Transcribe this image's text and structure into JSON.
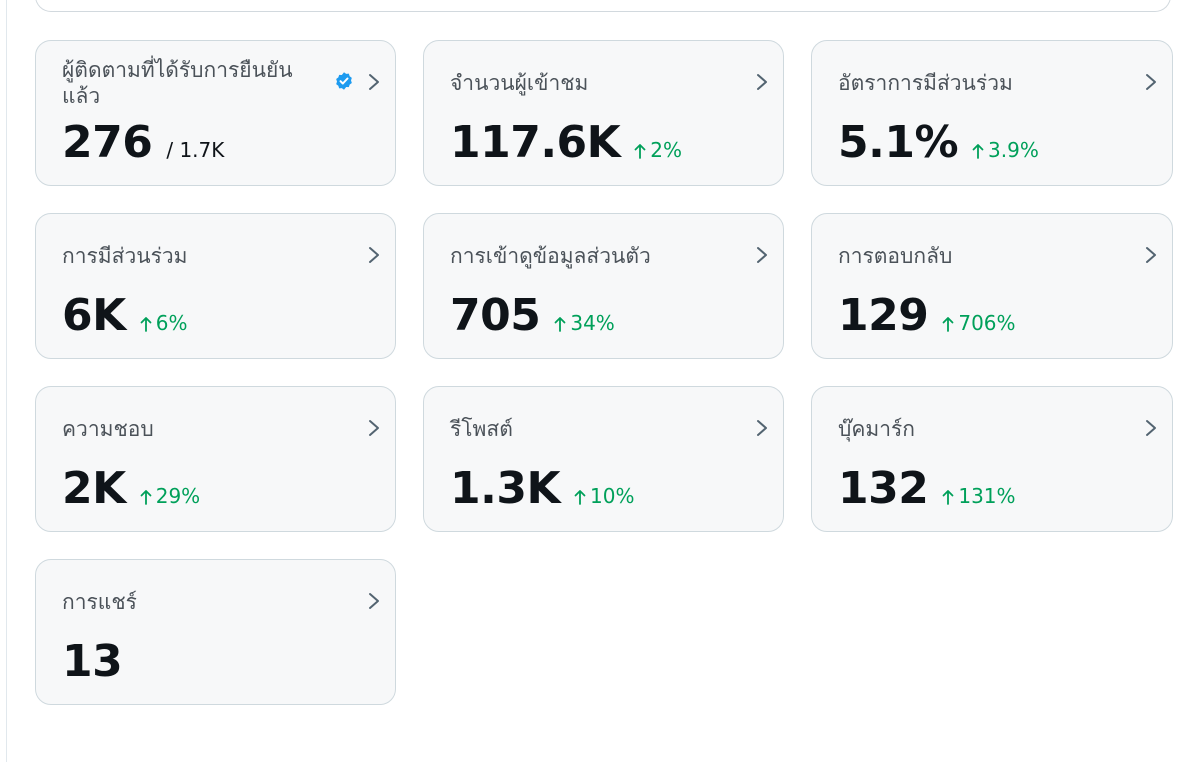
{
  "metrics": [
    {
      "label": "ผู้ติดตามที่ได้รับการยืนยันแล้ว",
      "value": "276",
      "sub": "/ 1.7K",
      "change": "",
      "verified": true
    },
    {
      "label": "จำนวนผู้เข้าชม",
      "value": "117.6K",
      "sub": "",
      "change": "2%",
      "verified": false
    },
    {
      "label": "อัตราการมีส่วนร่วม",
      "value": "5.1%",
      "sub": "",
      "change": "3.9%",
      "verified": false
    },
    {
      "label": "การมีส่วนร่วม",
      "value": "6K",
      "sub": "",
      "change": "6%",
      "verified": false
    },
    {
      "label": "การเข้าดูข้อมูลส่วนตัว",
      "value": "705",
      "sub": "",
      "change": "34%",
      "verified": false
    },
    {
      "label": "การตอบกลับ",
      "value": "129",
      "sub": "",
      "change": "706%",
      "verified": false
    },
    {
      "label": "ความชอบ",
      "value": "2K",
      "sub": "",
      "change": "29%",
      "verified": false
    },
    {
      "label": "รีโพสต์",
      "value": "1.3K",
      "sub": "",
      "change": "10%",
      "verified": false
    },
    {
      "label": "บุ๊คมาร์ก",
      "value": "132",
      "sub": "",
      "change": "131%",
      "verified": false
    },
    {
      "label": "การแชร์",
      "value": "13",
      "sub": "",
      "change": "",
      "verified": false
    }
  ],
  "icons": {
    "verified": "verified-badge-icon",
    "chevron": "chevron-right-icon",
    "arrow": "arrow-up-icon"
  },
  "colors": {
    "card_bg": "#f7f8f9",
    "card_border": "#cfd9de",
    "positive": "#00a05a",
    "verified": "#1d9bf0",
    "label": "#4b5259"
  }
}
